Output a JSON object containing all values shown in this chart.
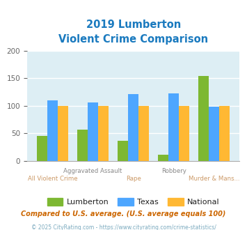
{
  "title_line1": "2019 Lumberton",
  "title_line2": "Violent Crime Comparison",
  "title_color": "#1a7abf",
  "categories": [
    "All Violent Crime",
    "Aggravated Assault",
    "Rape",
    "Robbery",
    "Murder & Mans..."
  ],
  "xlabels_top": [
    "",
    "Aggravated Assault",
    "",
    "Robbery",
    ""
  ],
  "xlabels_bot": [
    "All Violent Crime",
    "",
    "Rape",
    "",
    "Murder & Mans..."
  ],
  "lumberton": [
    46,
    57,
    37,
    11,
    154
  ],
  "texas": [
    110,
    106,
    121,
    123,
    98
  ],
  "national": [
    100,
    100,
    100,
    100,
    100
  ],
  "lumberton_color": "#7db832",
  "texas_color": "#4da6ff",
  "national_color": "#ffb833",
  "ylim": [
    0,
    200
  ],
  "yticks": [
    0,
    50,
    100,
    150,
    200
  ],
  "footnote1": "Compared to U.S. average. (U.S. average equals 100)",
  "footnote2": "© 2025 CityRating.com - https://www.cityrating.com/crime-statistics/",
  "footnote1_color": "#cc6600",
  "footnote2_color": "#7baabf",
  "fig_bg_color": "#ffffff",
  "plot_bg_color": "#ddeef4",
  "grid_color": "#ffffff",
  "xtop_color": "#888888",
  "xbot_color": "#cc9966"
}
